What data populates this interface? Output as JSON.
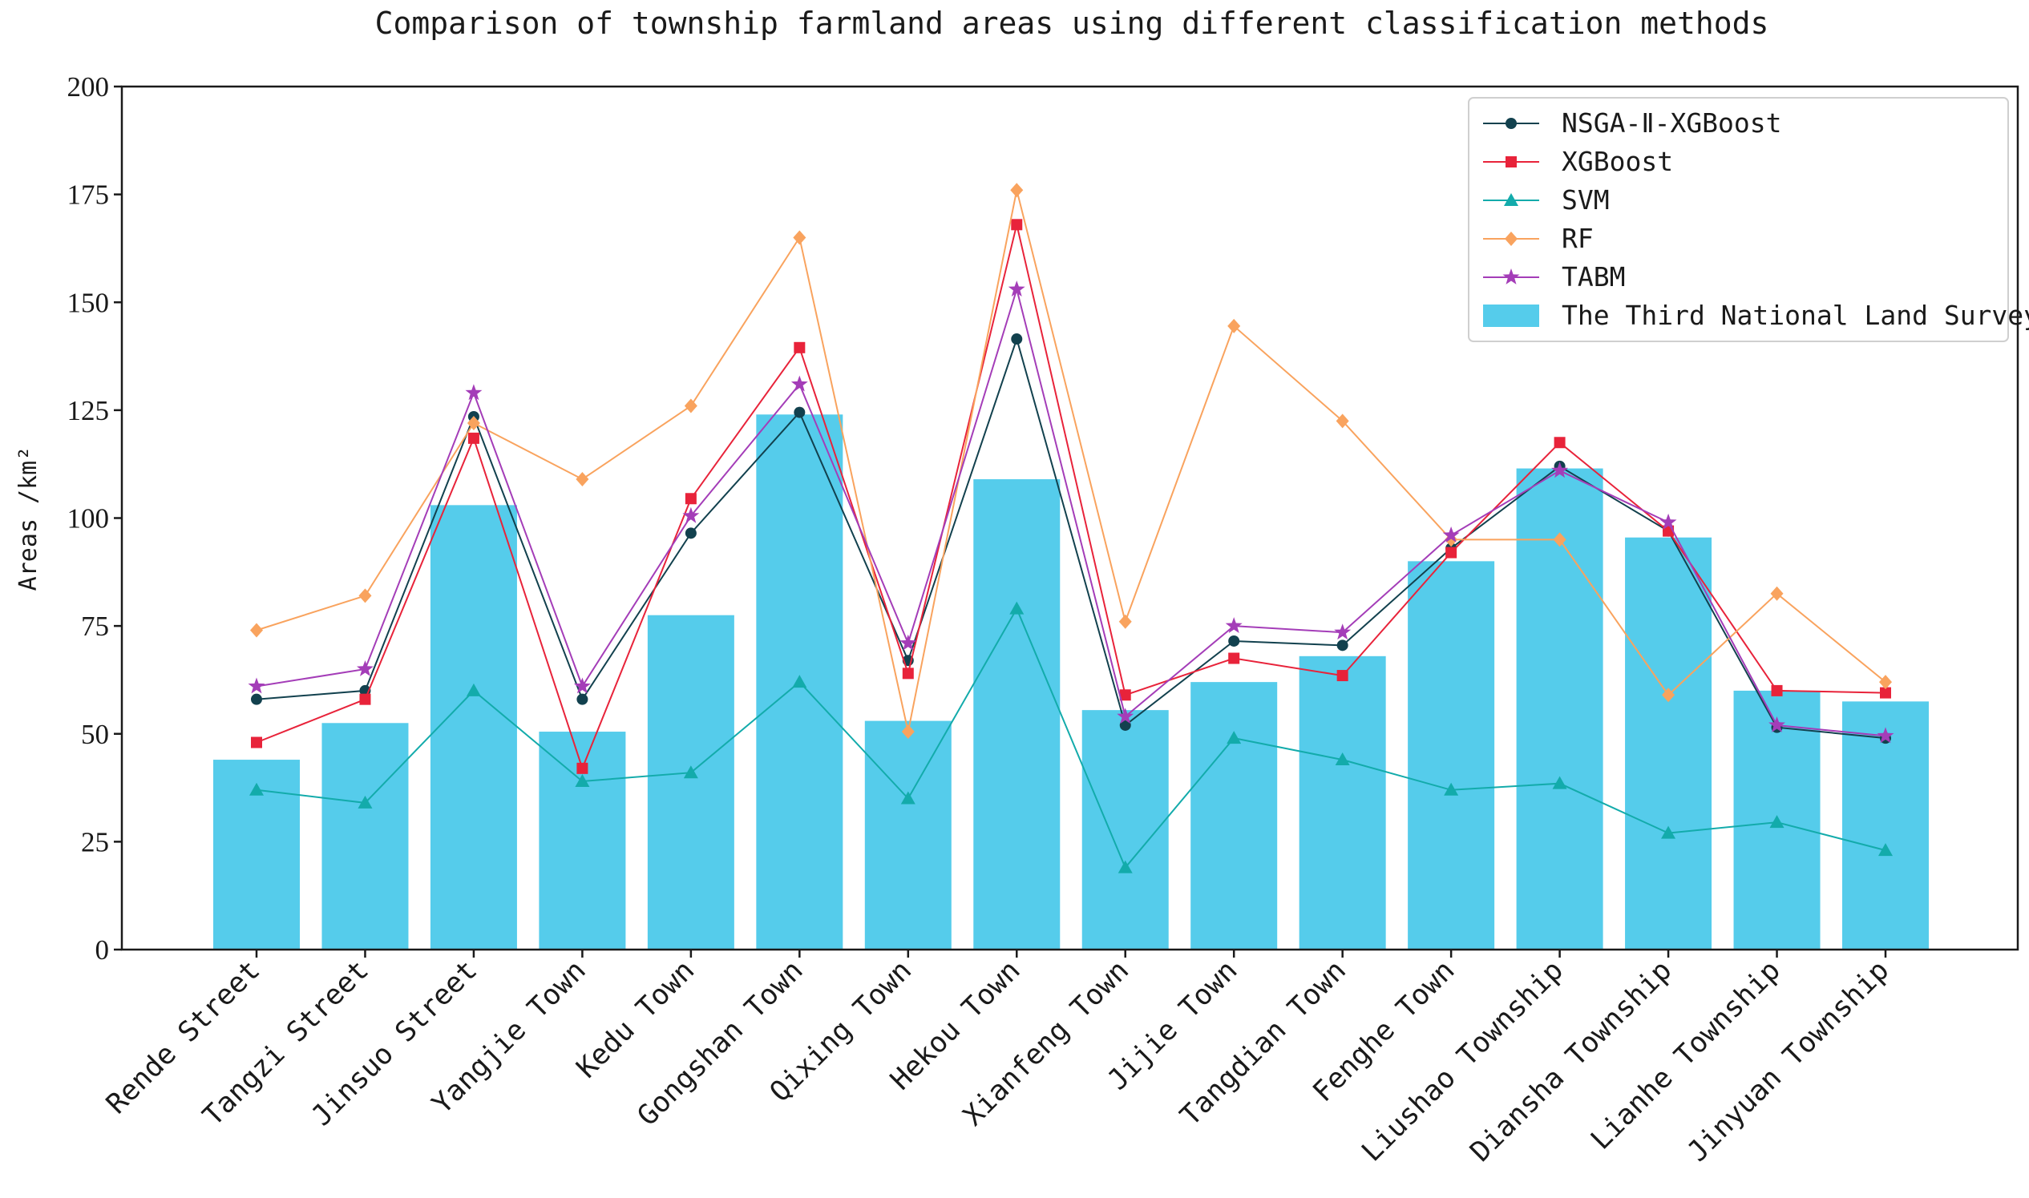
{
  "chart_data": {
    "type": "bar",
    "title": "Comparison of township farmland areas using different classification methods",
    "xlabel": "",
    "ylabel": "Areas /km²",
    "ylim": [
      0,
      200
    ],
    "yticks": [
      0,
      25,
      50,
      75,
      100,
      125,
      150,
      175,
      200
    ],
    "grid": false,
    "legend_position": "top-right",
    "categories": [
      "Rende Street",
      "Tangzi Street",
      "Jinsuo Street",
      "Yangjie Town",
      "Kedu Town",
      "Gongshan Town",
      "Qixing Town",
      "Hekou Town",
      "Xianfeng Town",
      "Jijie Town",
      "Tangdian Town",
      "Fenghe Town",
      "Liushao Township",
      "Diansha Township",
      "Lianhe Township",
      "Jinyuan Township"
    ],
    "bar_series": {
      "name": "The Third National Land Survey",
      "color": "#55CCEB",
      "values": [
        44,
        52.5,
        103,
        50.5,
        77.5,
        124,
        53,
        109,
        55.5,
        62,
        68,
        90,
        111.5,
        95.5,
        60,
        57.5
      ]
    },
    "series": [
      {
        "name": "NSGA-Ⅱ-XGBoost",
        "color": "#12414E",
        "marker": "circle",
        "values": [
          58,
          60,
          123.5,
          58,
          96.5,
          124.5,
          67,
          141.5,
          52,
          71.5,
          70.5,
          93,
          112,
          97,
          51.5,
          49
        ]
      },
      {
        "name": "XGBoost",
        "color": "#E8233A",
        "marker": "square",
        "values": [
          48,
          58,
          118.5,
          42,
          104.5,
          139.5,
          64,
          168,
          59,
          67.5,
          63.5,
          92,
          117.5,
          97,
          60,
          59.5
        ]
      },
      {
        "name": "SVM",
        "color": "#13ABAB",
        "marker": "triangle",
        "values": [
          37,
          34,
          60,
          39,
          41,
          62,
          35,
          79,
          19,
          49,
          44,
          37,
          38.5,
          27,
          29.5,
          23
        ]
      },
      {
        "name": "RF",
        "color": "#F9A35E",
        "marker": "diamond",
        "values": [
          74,
          82,
          122,
          109,
          126,
          165,
          50.5,
          176,
          76,
          144.5,
          122.5,
          95,
          95,
          59,
          82.5,
          62
        ]
      },
      {
        "name": "TABM",
        "color": "#A43DB8",
        "marker": "star",
        "values": [
          61,
          65,
          129,
          61,
          100.5,
          131,
          71,
          153,
          54,
          75,
          73.5,
          96,
          111,
          99,
          52,
          49.5
        ]
      }
    ]
  }
}
